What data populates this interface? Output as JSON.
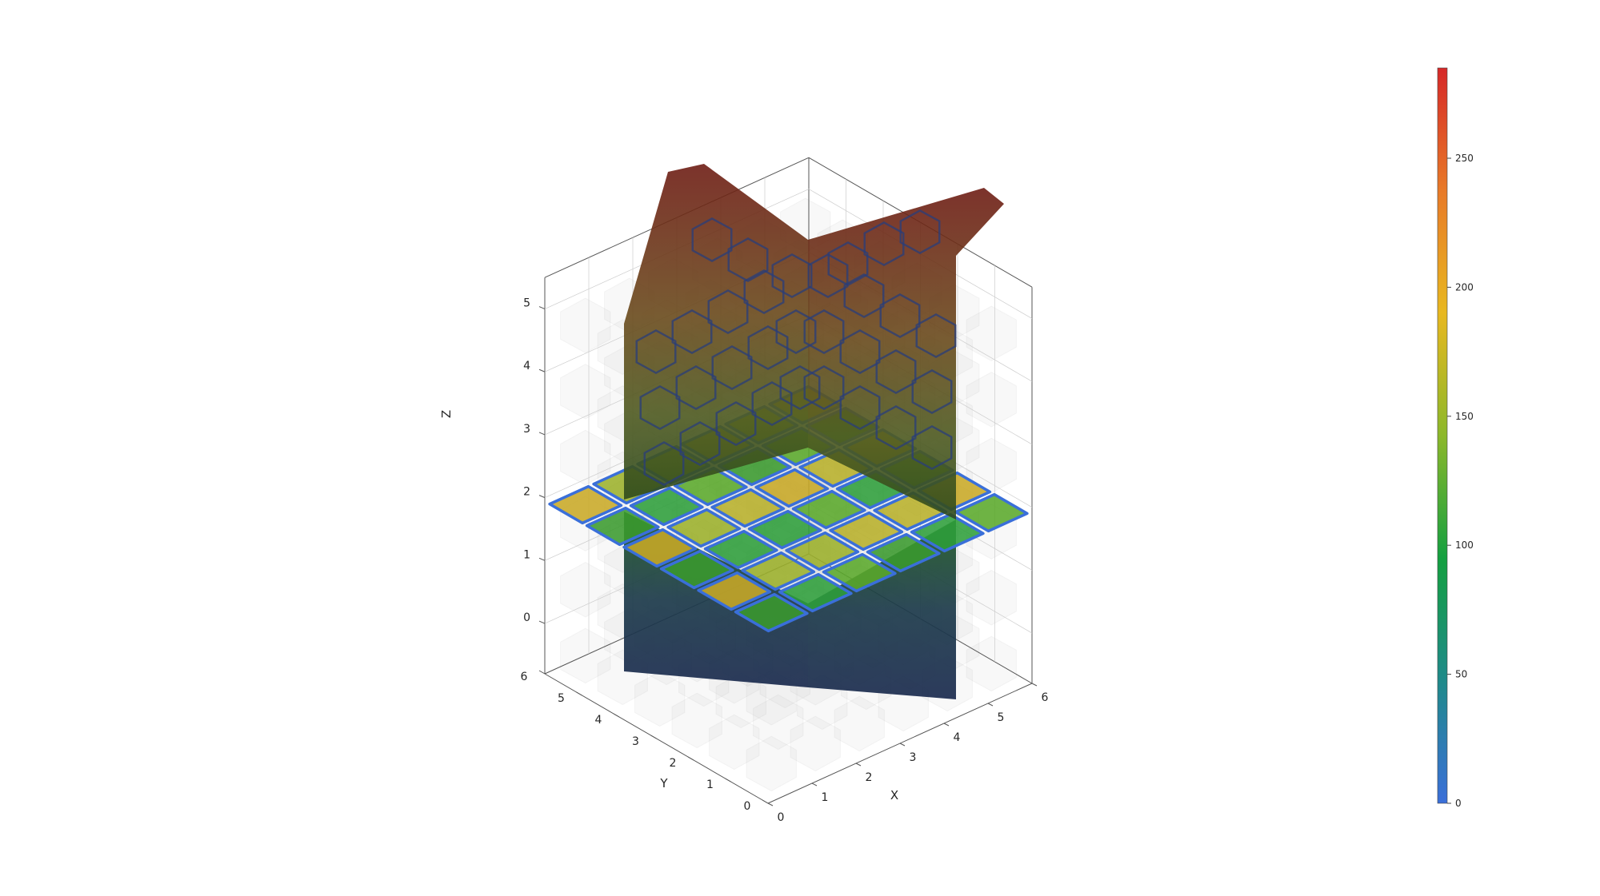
{
  "chart_data": {
    "type": "3d-voxel-slice",
    "xlabel": "X",
    "ylabel": "Y",
    "zlabel": "Z",
    "x_ticks": [
      "0",
      "1",
      "2",
      "3",
      "4",
      "5",
      "6"
    ],
    "y_ticks": [
      "0",
      "1",
      "2",
      "3",
      "4",
      "5",
      "6"
    ],
    "z_ticks": [
      "0",
      "1",
      "2",
      "3",
      "4",
      "5"
    ],
    "xlim": [
      0,
      6
    ],
    "ylim": [
      0,
      6
    ],
    "zlim": [
      -0.8,
      5.5
    ],
    "colorbar": {
      "ticks": [
        "0",
        "50",
        "100",
        "150",
        "200",
        "250"
      ],
      "range": [
        0,
        285
      ],
      "colormap": [
        "#3b6fd9",
        "#1f8a8a",
        "#14a040",
        "#8cb82a",
        "#e8b820",
        "#e87a28",
        "#d62828"
      ]
    },
    "background_cells_color": "#9a9a9a",
    "slice_plane_z": 1.9
  }
}
